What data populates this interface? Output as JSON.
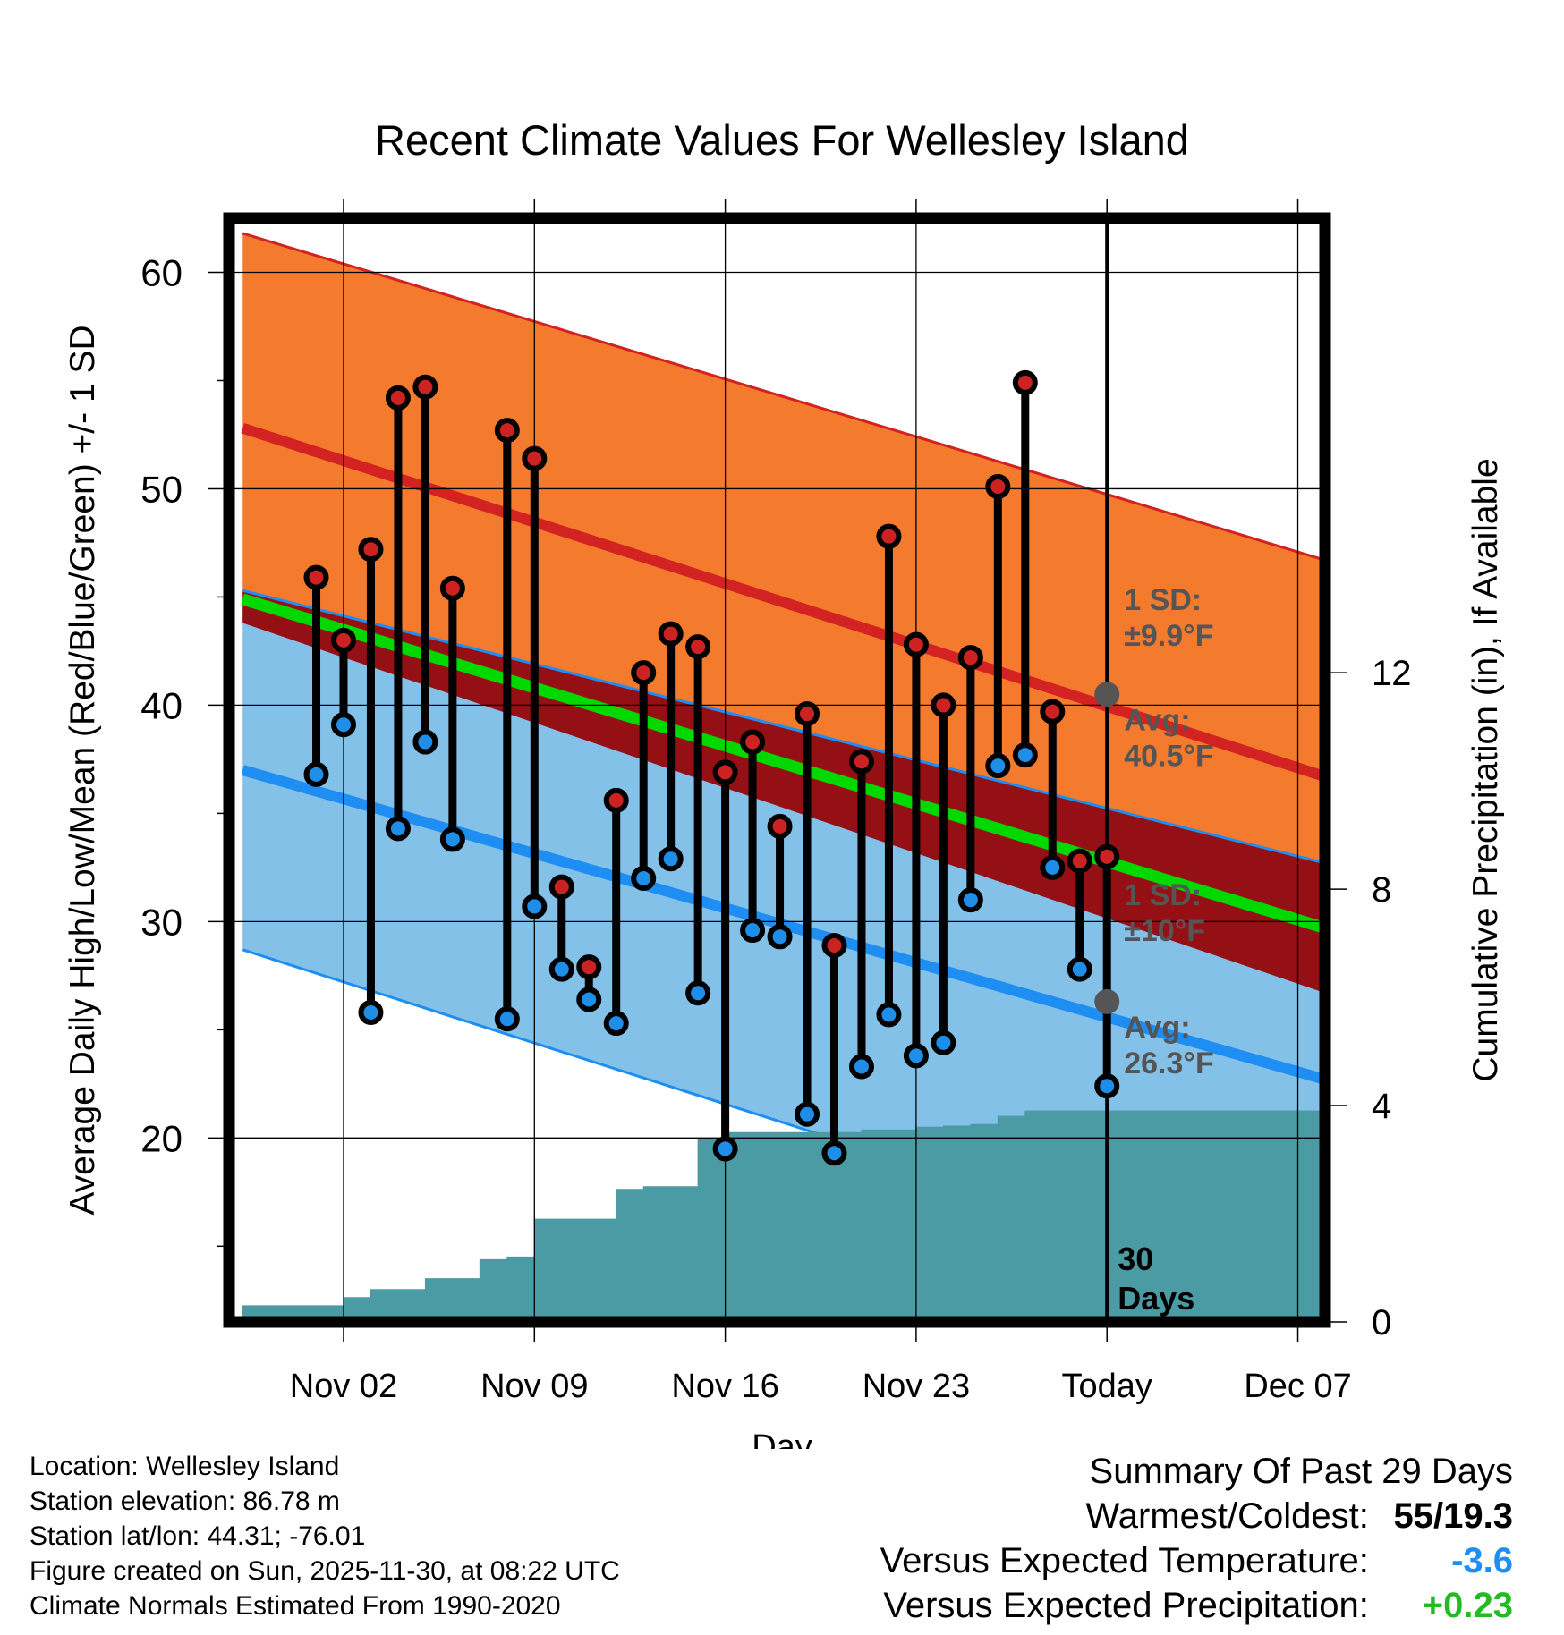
{
  "chart_data": {
    "type": "line",
    "title": "Recent Climate Values For Wellesley Island",
    "xlabel": "Day",
    "ylabel": "Average Daily High/Low/Mean (Red/Blue/Green) +/- 1 SD",
    "y2label": "Cumulative Precipitation (in), If Available",
    "x_range_days": [
      -3.2,
      37.0
    ],
    "ylim": [
      11.5,
      62.5
    ],
    "y2lim": [
      0,
      20.4
    ],
    "x_ticks": [
      {
        "day": 1,
        "label": "Nov 02"
      },
      {
        "day": 8,
        "label": "Nov 09"
      },
      {
        "day": 15,
        "label": "Nov 16"
      },
      {
        "day": 22,
        "label": "Nov 23"
      },
      {
        "day": 29,
        "label": "Today"
      },
      {
        "day": 36,
        "label": "Dec 07"
      }
    ],
    "y_ticks": [
      20,
      30,
      40,
      50,
      60
    ],
    "y_minor_ticks": [
      15,
      25,
      35,
      45,
      55
    ],
    "y2_ticks": [
      0,
      4,
      8,
      12
    ],
    "today_day": 29,
    "days_label": [
      "30",
      "Days"
    ],
    "normals": {
      "day": [
        -2.7,
        37.0
      ],
      "high_avg": [
        52.8,
        36.7
      ],
      "high_upper": [
        61.8,
        46.7
      ],
      "low_avg": [
        37.0,
        22.7
      ],
      "low_lower": [
        28.7,
        12.7
      ],
      "mean_avg": [
        44.9,
        29.7
      ]
    },
    "series": [
      {
        "name": "High",
        "color": "#cc2222",
        "values": [
          45.9,
          43.0,
          47.2,
          54.2,
          54.7,
          45.4,
          null,
          52.7,
          51.4,
          31.6,
          27.9,
          35.6,
          41.5,
          43.3,
          42.7,
          36.9,
          38.3,
          34.4,
          39.6,
          28.9,
          37.4,
          47.8,
          42.8,
          40.0,
          42.2,
          50.1,
          54.9,
          39.7,
          32.8,
          33.0
        ]
      },
      {
        "name": "Low",
        "color": "#1e8ee8",
        "values": [
          36.8,
          39.1,
          25.8,
          34.3,
          38.3,
          33.8,
          null,
          25.5,
          30.7,
          27.8,
          26.4,
          25.3,
          32.0,
          32.9,
          26.7,
          19.5,
          29.6,
          29.3,
          21.1,
          19.3,
          23.3,
          25.7,
          23.8,
          24.4,
          31.0,
          37.2,
          37.7,
          32.5,
          27.8,
          22.4
        ]
      }
    ],
    "precip_cumulative": [
      {
        "day": -2.7,
        "value": 0.0
      },
      {
        "day": -2.0,
        "value": 0.3
      },
      {
        "day": 1.0,
        "value": 0.3
      },
      {
        "day": 2.0,
        "value": 0.45
      },
      {
        "day": 3.0,
        "value": 0.6
      },
      {
        "day": 4.0,
        "value": 0.6
      },
      {
        "day": 5.0,
        "value": 0.8
      },
      {
        "day": 6.0,
        "value": 0.8
      },
      {
        "day": 7.0,
        "value": 1.15
      },
      {
        "day": 8.0,
        "value": 1.2
      },
      {
        "day": 9.0,
        "value": 1.9
      },
      {
        "day": 10.0,
        "value": 1.9
      },
      {
        "day": 11.0,
        "value": 1.9
      },
      {
        "day": 12.0,
        "value": 2.45
      },
      {
        "day": 13.0,
        "value": 2.5
      },
      {
        "day": 14.0,
        "value": 2.5
      },
      {
        "day": 15.0,
        "value": 3.4
      },
      {
        "day": 16.0,
        "value": 3.5
      },
      {
        "day": 17.0,
        "value": 3.5
      },
      {
        "day": 18.0,
        "value": 3.5
      },
      {
        "day": 19.0,
        "value": 3.5
      },
      {
        "day": 20.0,
        "value": 3.5
      },
      {
        "day": 21.0,
        "value": 3.55
      },
      {
        "day": 22.0,
        "value": 3.55
      },
      {
        "day": 23.0,
        "value": 3.6
      },
      {
        "day": 24.0,
        "value": 3.62
      },
      {
        "day": 25.0,
        "value": 3.65
      },
      {
        "day": 26.0,
        "value": 3.8
      },
      {
        "day": 27.0,
        "value": 3.9
      },
      {
        "day": 37.0,
        "value": 3.9
      }
    ],
    "annotations": {
      "high_sd_label": [
        "1 SD:",
        "±9.9°F"
      ],
      "high_avg_label": [
        "Avg:",
        "40.5°F"
      ],
      "high_avg_value": 40.5,
      "low_sd_label": [
        "1 SD:",
        "±10°F"
      ],
      "low_avg_label": [
        "Avg:",
        "26.3°F"
      ],
      "low_avg_value": 26.3
    },
    "colors": {
      "high_band": "#f47a2e",
      "high_line": "#d22222",
      "low_band": "#83c1e8",
      "low_line": "#1e8ef2",
      "overlap": "#951015",
      "mean_line": "#00d800",
      "precip": "#4a9ba3",
      "marker_dot": "#555555",
      "annotation_text": "#555555"
    }
  },
  "info": {
    "location": "Location: Wellesley Island",
    "elevation": "Station elevation: 86.78 m",
    "latlon": "Station lat/lon: 44.31; -76.01",
    "created": "Figure created on Sun, 2025-11-30, at 08:22 UTC",
    "normals": "Climate Normals Estimated From 1990-2020"
  },
  "summary": {
    "title": "Summary Of Past 29 Days",
    "warm_cold_label": "Warmest/Coldest:",
    "warm_cold_value": "55/19.3",
    "temp_label": "Versus Expected Temperature:",
    "temp_value": "-3.6",
    "temp_color": "#1e8ef2",
    "precip_label": "Versus Expected Precipitation:",
    "precip_value": "+0.23",
    "precip_color": "#22bb22"
  }
}
